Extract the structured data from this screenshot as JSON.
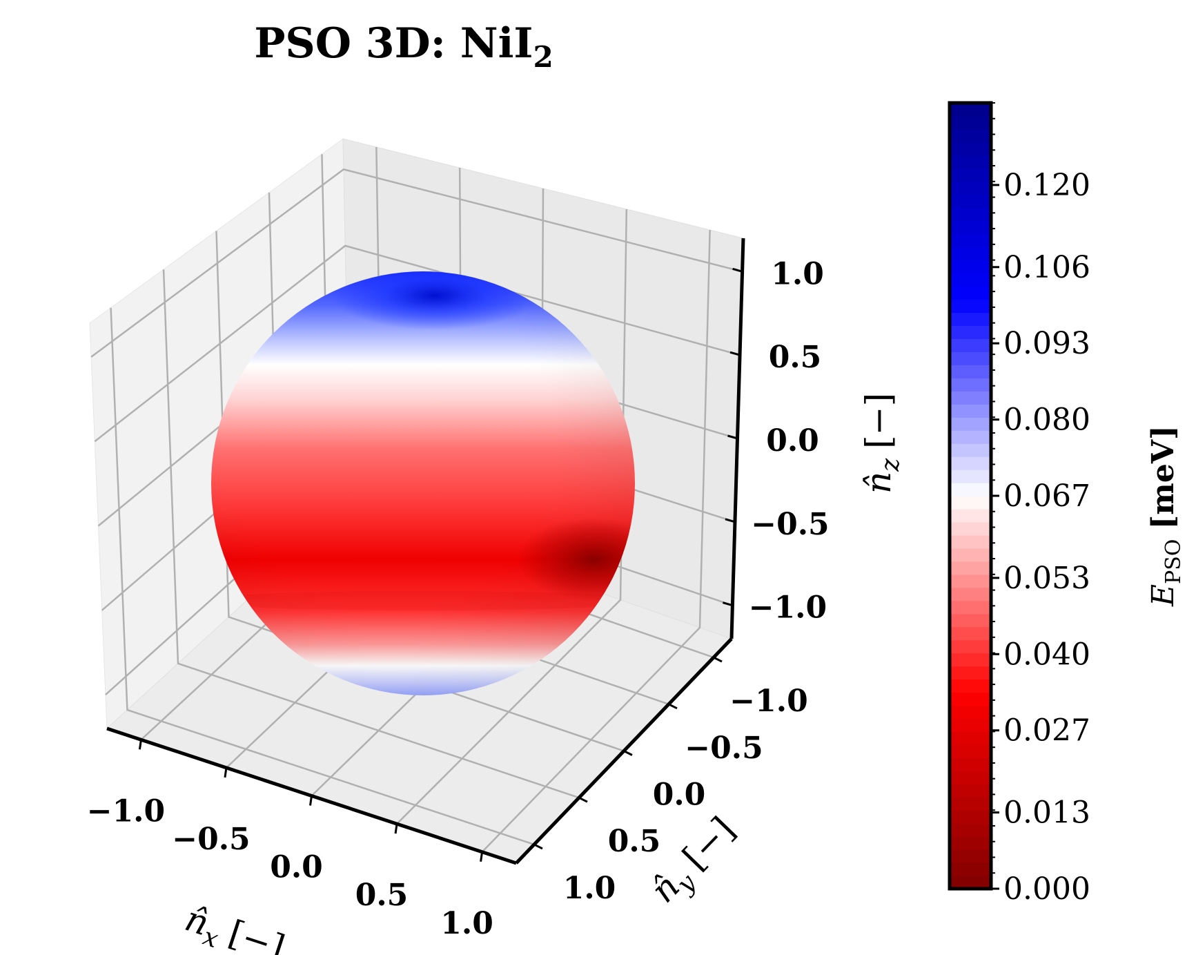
{
  "chart_data": {
    "type": "surface3d",
    "title_main": "PSO 3D: NiI",
    "title_sub": "2",
    "x_axis": {
      "label_main": "n̂",
      "label_sub": "x",
      "label_unit": "[−]",
      "ticks": [
        "−1.0",
        "−0.5",
        "0.0",
        "0.5",
        "1.0"
      ],
      "range": [
        -1.2,
        1.2
      ]
    },
    "y_axis": {
      "label_main": "n̂",
      "label_sub": "y",
      "label_unit": "[−]",
      "ticks": [
        "−1.0",
        "−0.5",
        "0.0",
        "0.5",
        "1.0"
      ],
      "range": [
        -1.2,
        1.2
      ]
    },
    "z_axis": {
      "label_main": "n̂",
      "label_sub": "z",
      "label_unit": "[−]",
      "ticks": [
        "1.0",
        "0.5",
        "0.0",
        "−0.5",
        "−1.0"
      ],
      "range": [
        -1.2,
        1.2
      ]
    },
    "surface": "unit sphere",
    "colormap": "seismic_r",
    "colorbar": {
      "label_main": "E",
      "label_sub": "PSO",
      "label_unit": "[meV]",
      "ticks": [
        "0.120",
        "0.106",
        "0.093",
        "0.080",
        "0.067",
        "0.053",
        "0.040",
        "0.027",
        "0.013",
        "0.000"
      ],
      "tick_values": [
        0.12,
        0.106,
        0.093,
        0.08,
        0.067,
        0.053,
        0.04,
        0.027,
        0.013,
        0.0
      ],
      "range": [
        0.0,
        0.134
      ]
    },
    "features": [
      {
        "region": "north pole (nz ≈ 1)",
        "value": 0.134
      },
      {
        "region": "nz ≈ 0.6 band",
        "value": 0.067
      },
      {
        "region": "equator (nz ≈ 0)",
        "value": 0.025
      },
      {
        "region": "nz ≈ −0.4 band",
        "value": 0.01
      },
      {
        "region": "south pole (nz ≈ −1)",
        "value": 0.08
      }
    ],
    "grid": true,
    "colors": {
      "high": "#00008b",
      "mid": "#ffffff",
      "low": "#800000"
    }
  }
}
